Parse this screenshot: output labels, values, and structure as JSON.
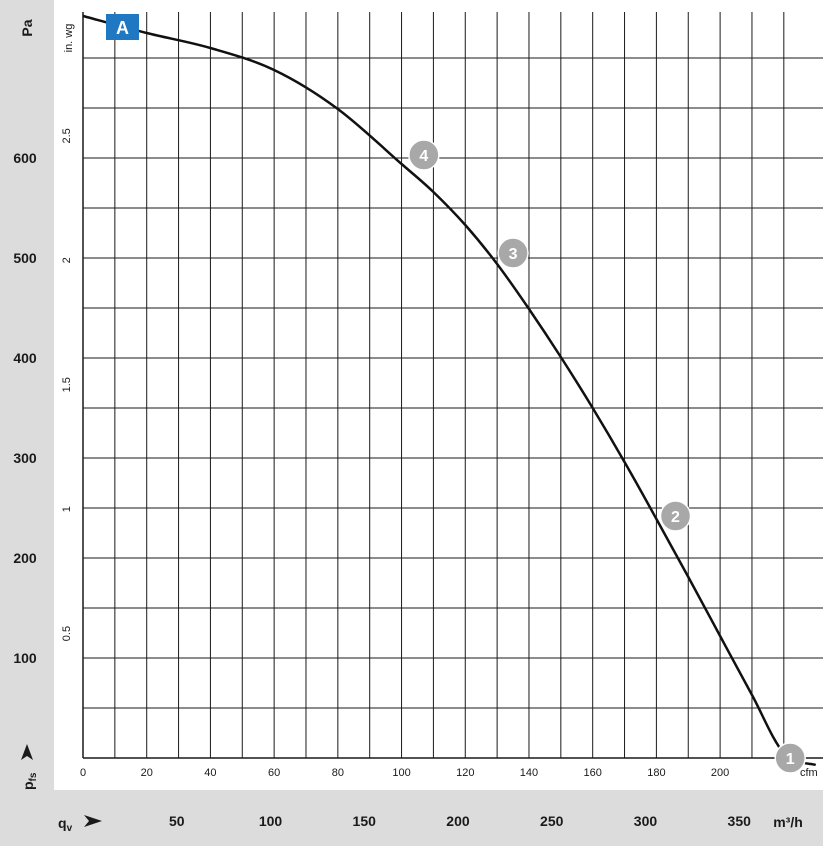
{
  "chart_data": {
    "type": "line",
    "x_axes": {
      "cfm": {
        "unit": "cfm",
        "ticks": [
          "0",
          "20",
          "40",
          "60",
          "80",
          "100",
          "120",
          "140",
          "160",
          "180",
          "200"
        ]
      },
      "m3h": {
        "label": "q",
        "label_sub": "v",
        "unit": "m³/h",
        "ticks": [
          "50",
          "100",
          "150",
          "200",
          "250",
          "300",
          "350"
        ]
      }
    },
    "y_axes": {
      "pa": {
        "label": "p",
        "label_sub": "fs",
        "unit": "Pa",
        "ticks": [
          "100",
          "200",
          "300",
          "400",
          "500",
          "600"
        ]
      },
      "inwg": {
        "unit": "in. wg",
        "ticks": [
          "0.5",
          "1",
          "1.5",
          "2",
          "2.5"
        ]
      }
    },
    "xlim_cfm": [
      0,
      232.3
    ],
    "ylim_pa": [
      0,
      742
    ],
    "grid": true,
    "badge": "A",
    "series": [
      {
        "x_cfm": [
          0,
          20,
          40,
          60,
          80,
          100,
          110,
          120,
          130,
          140,
          150,
          160,
          170,
          180,
          190,
          200,
          210,
          220,
          230
        ],
        "y_pa": [
          742,
          725,
          710,
          688,
          649,
          594,
          566,
          533,
          494,
          449,
          401,
          350,
          296,
          239,
          181,
          122,
          63,
          5,
          -7
        ]
      }
    ],
    "operating_points": [
      {
        "label": "1",
        "x_cfm": 222,
        "y_pa": 0
      },
      {
        "label": "2",
        "x_cfm": 186,
        "y_pa": 242
      },
      {
        "label": "3",
        "x_cfm": 135,
        "y_pa": 505
      },
      {
        "label": "4",
        "x_cfm": 107,
        "y_pa": 603
      }
    ]
  }
}
